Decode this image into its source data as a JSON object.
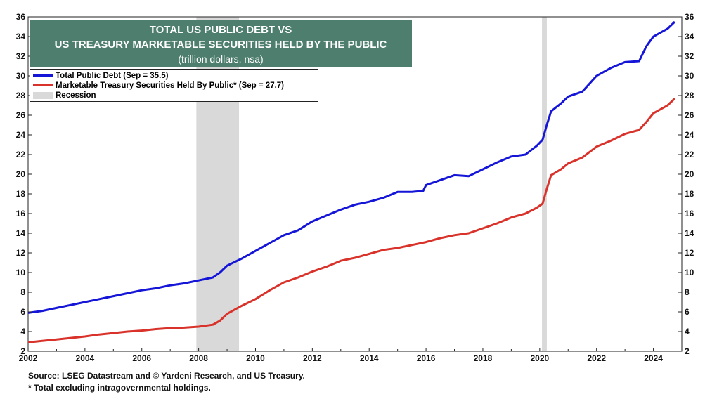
{
  "chart_data": {
    "type": "line",
    "title": "TOTAL US PUBLIC DEBT VS",
    "title_line2": "US TREASURY MARKETABLE SECURITIES HELD BY THE PUBLIC",
    "subtitle": "(trillion dollars, nsa)",
    "xlabel": "",
    "ylabel": "",
    "x_ticks": [
      "2002",
      "2004",
      "2006",
      "2008",
      "2010",
      "2012",
      "2014",
      "2016",
      "2018",
      "2020",
      "2022",
      "2024"
    ],
    "y_ticks": [
      "2",
      "4",
      "6",
      "8",
      "10",
      "12",
      "14",
      "16",
      "18",
      "20",
      "22",
      "24",
      "26",
      "28",
      "30",
      "32",
      "34",
      "36"
    ],
    "xlim": [
      2002.0,
      2025.0
    ],
    "ylim": [
      2,
      36
    ],
    "grid": false,
    "legend_position": "top-left",
    "colors": {
      "title_bg": "#4e7f6e",
      "recession": "#d9d9d9"
    },
    "recessions": [
      {
        "label": "Recession",
        "start": 2007.92,
        "end": 2009.42
      },
      {
        "label": "Recession",
        "start": 2020.08,
        "end": 2020.25
      }
    ],
    "legend": [
      {
        "label": "Total Public Debt (Sep = 35.5)",
        "color": "#1515d8",
        "kind": "line"
      },
      {
        "label": "Marketable Treasury Securities Held By Public* (Sep = 27.7)",
        "color": "#d9322a",
        "kind": "line"
      },
      {
        "label": "Recession",
        "color": "#d9d9d9",
        "kind": "box"
      }
    ],
    "series": [
      {
        "name": "Total Public Debt",
        "color": "#1515d8",
        "points": [
          [
            2002.0,
            5.9
          ],
          [
            2002.5,
            6.1
          ],
          [
            2003.0,
            6.4
          ],
          [
            2003.5,
            6.7
          ],
          [
            2004.0,
            7.0
          ],
          [
            2004.5,
            7.3
          ],
          [
            2005.0,
            7.6
          ],
          [
            2005.5,
            7.9
          ],
          [
            2006.0,
            8.2
          ],
          [
            2006.5,
            8.4
          ],
          [
            2007.0,
            8.7
          ],
          [
            2007.5,
            8.9
          ],
          [
            2008.0,
            9.2
          ],
          [
            2008.5,
            9.5
          ],
          [
            2008.75,
            10.0
          ],
          [
            2009.0,
            10.7
          ],
          [
            2009.5,
            11.4
          ],
          [
            2010.0,
            12.2
          ],
          [
            2010.5,
            13.0
          ],
          [
            2011.0,
            13.8
          ],
          [
            2011.5,
            14.3
          ],
          [
            2012.0,
            15.2
          ],
          [
            2012.5,
            15.8
          ],
          [
            2013.0,
            16.4
          ],
          [
            2013.5,
            16.9
          ],
          [
            2014.0,
            17.2
          ],
          [
            2014.5,
            17.6
          ],
          [
            2015.0,
            18.2
          ],
          [
            2015.5,
            18.2
          ],
          [
            2015.9,
            18.3
          ],
          [
            2016.0,
            18.9
          ],
          [
            2016.5,
            19.4
          ],
          [
            2017.0,
            19.9
          ],
          [
            2017.5,
            19.8
          ],
          [
            2018.0,
            20.5
          ],
          [
            2018.5,
            21.2
          ],
          [
            2019.0,
            21.8
          ],
          [
            2019.5,
            22.0
          ],
          [
            2019.9,
            22.9
          ],
          [
            2020.1,
            23.5
          ],
          [
            2020.25,
            25.0
          ],
          [
            2020.4,
            26.4
          ],
          [
            2020.75,
            27.2
          ],
          [
            2021.0,
            27.9
          ],
          [
            2021.5,
            28.4
          ],
          [
            2022.0,
            30.0
          ],
          [
            2022.5,
            30.8
          ],
          [
            2023.0,
            31.4
          ],
          [
            2023.5,
            31.5
          ],
          [
            2023.75,
            33.0
          ],
          [
            2024.0,
            34.0
          ],
          [
            2024.5,
            34.8
          ],
          [
            2024.75,
            35.5
          ]
        ]
      },
      {
        "name": "Marketable Treasury Securities Held By Public*",
        "color": "#d9322a",
        "points": [
          [
            2002.0,
            2.9
          ],
          [
            2002.5,
            3.05
          ],
          [
            2003.0,
            3.2
          ],
          [
            2003.5,
            3.35
          ],
          [
            2004.0,
            3.5
          ],
          [
            2004.5,
            3.7
          ],
          [
            2005.0,
            3.85
          ],
          [
            2005.5,
            4.0
          ],
          [
            2006.0,
            4.1
          ],
          [
            2006.5,
            4.25
          ],
          [
            2007.0,
            4.35
          ],
          [
            2007.5,
            4.4
          ],
          [
            2008.0,
            4.5
          ],
          [
            2008.5,
            4.7
          ],
          [
            2008.75,
            5.1
          ],
          [
            2009.0,
            5.8
          ],
          [
            2009.5,
            6.6
          ],
          [
            2010.0,
            7.3
          ],
          [
            2010.5,
            8.2
          ],
          [
            2011.0,
            9.0
          ],
          [
            2011.5,
            9.5
          ],
          [
            2012.0,
            10.1
          ],
          [
            2012.5,
            10.6
          ],
          [
            2013.0,
            11.2
          ],
          [
            2013.5,
            11.5
          ],
          [
            2014.0,
            11.9
          ],
          [
            2014.5,
            12.3
          ],
          [
            2015.0,
            12.5
          ],
          [
            2015.5,
            12.8
          ],
          [
            2016.0,
            13.1
          ],
          [
            2016.5,
            13.5
          ],
          [
            2017.0,
            13.8
          ],
          [
            2017.5,
            14.0
          ],
          [
            2018.0,
            14.5
          ],
          [
            2018.5,
            15.0
          ],
          [
            2019.0,
            15.6
          ],
          [
            2019.5,
            16.0
          ],
          [
            2019.9,
            16.6
          ],
          [
            2020.1,
            17.0
          ],
          [
            2020.25,
            18.5
          ],
          [
            2020.4,
            19.9
          ],
          [
            2020.75,
            20.5
          ],
          [
            2021.0,
            21.1
          ],
          [
            2021.5,
            21.7
          ],
          [
            2022.0,
            22.8
          ],
          [
            2022.5,
            23.4
          ],
          [
            2023.0,
            24.1
          ],
          [
            2023.5,
            24.5
          ],
          [
            2023.75,
            25.3
          ],
          [
            2024.0,
            26.2
          ],
          [
            2024.5,
            27.0
          ],
          [
            2024.75,
            27.7
          ]
        ]
      }
    ]
  },
  "footer": {
    "source": "Source: LSEG Datastream and © Yardeni Research, and US Treasury.",
    "note": "* Total excluding intragovernmental holdings."
  }
}
